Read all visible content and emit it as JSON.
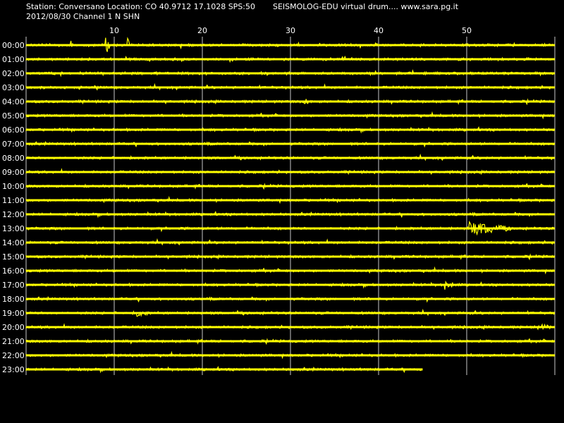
{
  "header": {
    "station_line": "Station: Conversano Location: CO 40.9712 17.1028 SPS:50",
    "product_line": "SEISMOLOG-EDU virtual drum.... www.sara.pg.it",
    "date_channel_line": "2012/08/30  Channel 1 N SHN"
  },
  "colors": {
    "background": "#000000",
    "trace": "#ffff00",
    "grid": "#c8c8c8",
    "text": "#ffffff"
  },
  "chart_data": {
    "type": "line",
    "title": "",
    "xlabel": "",
    "ylabel": "",
    "x_unit": "minutes",
    "xlim": [
      0,
      60
    ],
    "x_ticks": [
      10,
      20,
      30,
      40,
      50
    ],
    "grid": true,
    "row_labels": [
      "00:00",
      "01:00",
      "02:00",
      "03:00",
      "04:00",
      "05:00",
      "06:00",
      "07:00",
      "08:00",
      "09:00",
      "10:00",
      "11:00",
      "12:00",
      "13:00",
      "14:00",
      "15:00",
      "16:00",
      "17:00",
      "18:00",
      "19:00",
      "20:00",
      "21:00",
      "22:00",
      "23:00"
    ],
    "last_row_end_minute": 45,
    "events": [
      {
        "row": "13:00",
        "start_minute": 50,
        "end_minute": 55,
        "amplitude": 10
      },
      {
        "row": "17:00",
        "start_minute": 47.5,
        "end_minute": 48.5,
        "amplitude": 9
      },
      {
        "row": "19:00",
        "start_minute": 12.5,
        "end_minute": 14,
        "amplitude": 6
      },
      {
        "row": "20:00",
        "start_minute": 58,
        "end_minute": 60,
        "amplitude": 5
      },
      {
        "row": "04:00",
        "start_minute": 31.5,
        "end_minute": 32,
        "amplitude": 8
      },
      {
        "row": "00:00",
        "start_minute": 5,
        "end_minute": 5.3,
        "amplitude": 10
      },
      {
        "row": "00:00",
        "start_minute": 9,
        "end_minute": 9.5,
        "amplitude": 14
      },
      {
        "row": "00:00",
        "start_minute": 11.5,
        "end_minute": 11.8,
        "amplitude": 12
      }
    ]
  }
}
